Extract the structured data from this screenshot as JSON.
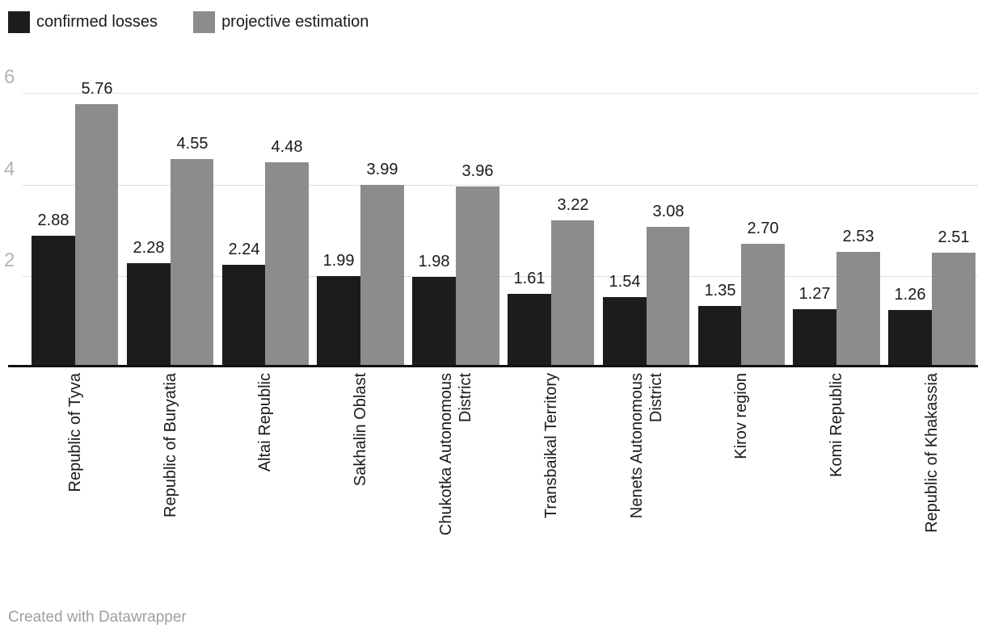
{
  "legend": [
    {
      "label": "confirmed losses",
      "color": "#1c1c1e"
    },
    {
      "label": "projective estimation",
      "color": "#8c8c8c"
    }
  ],
  "footer": {
    "credit": "Created with Datawrapper"
  },
  "theme": {
    "bar_black": "#1c1c1e",
    "bar_gray": "#8c8c8c",
    "gridline": "#dedede",
    "axis_line": "#111111",
    "tick_label": "#b3b3b3",
    "value_label": "#1a1a1a",
    "category_label": "#1a1a1a",
    "footer_text": "#9e9e9e",
    "background": "#ffffff"
  },
  "chart_data": {
    "type": "bar",
    "title": "",
    "categories": [
      "Republic of Tyva",
      "Republic of Buryatia",
      "Altai Republic",
      "Sakhalin Oblast",
      "Chukotka Autonomous District",
      "Transbaikal Territory",
      "Nenets Autonomous District",
      "Kirov region",
      "Komi Republic",
      "Republic of Khakassia"
    ],
    "category_label_lines": [
      [
        "Republic of Tyva"
      ],
      [
        "Republic of Buryatia"
      ],
      [
        "Altai Republic"
      ],
      [
        "Sakhalin Oblast"
      ],
      [
        "Chukotka Autonomous",
        "District"
      ],
      [
        "Transbaikal Territory"
      ],
      [
        "Nenets Autonomous",
        "District"
      ],
      [
        "Kirov region"
      ],
      [
        "Komi Republic"
      ],
      [
        "Republic of Khakassia"
      ]
    ],
    "series": [
      {
        "name": "confirmed losses",
        "color": "#1c1c1e",
        "values": [
          2.88,
          2.28,
          2.24,
          1.99,
          1.98,
          1.61,
          1.54,
          1.35,
          1.27,
          1.26
        ]
      },
      {
        "name": "projective estimation",
        "color": "#8c8c8c",
        "values": [
          5.76,
          4.55,
          4.48,
          3.99,
          3.96,
          3.22,
          3.08,
          2.7,
          2.53,
          2.51
        ]
      }
    ],
    "yticks": [
      2,
      4,
      6
    ],
    "ylim": [
      0,
      6.5
    ],
    "xlabel": "",
    "ylabel": "",
    "grid": true,
    "value_labels": true,
    "value_label_format": "2-decimals",
    "legend_position": "top-left"
  }
}
